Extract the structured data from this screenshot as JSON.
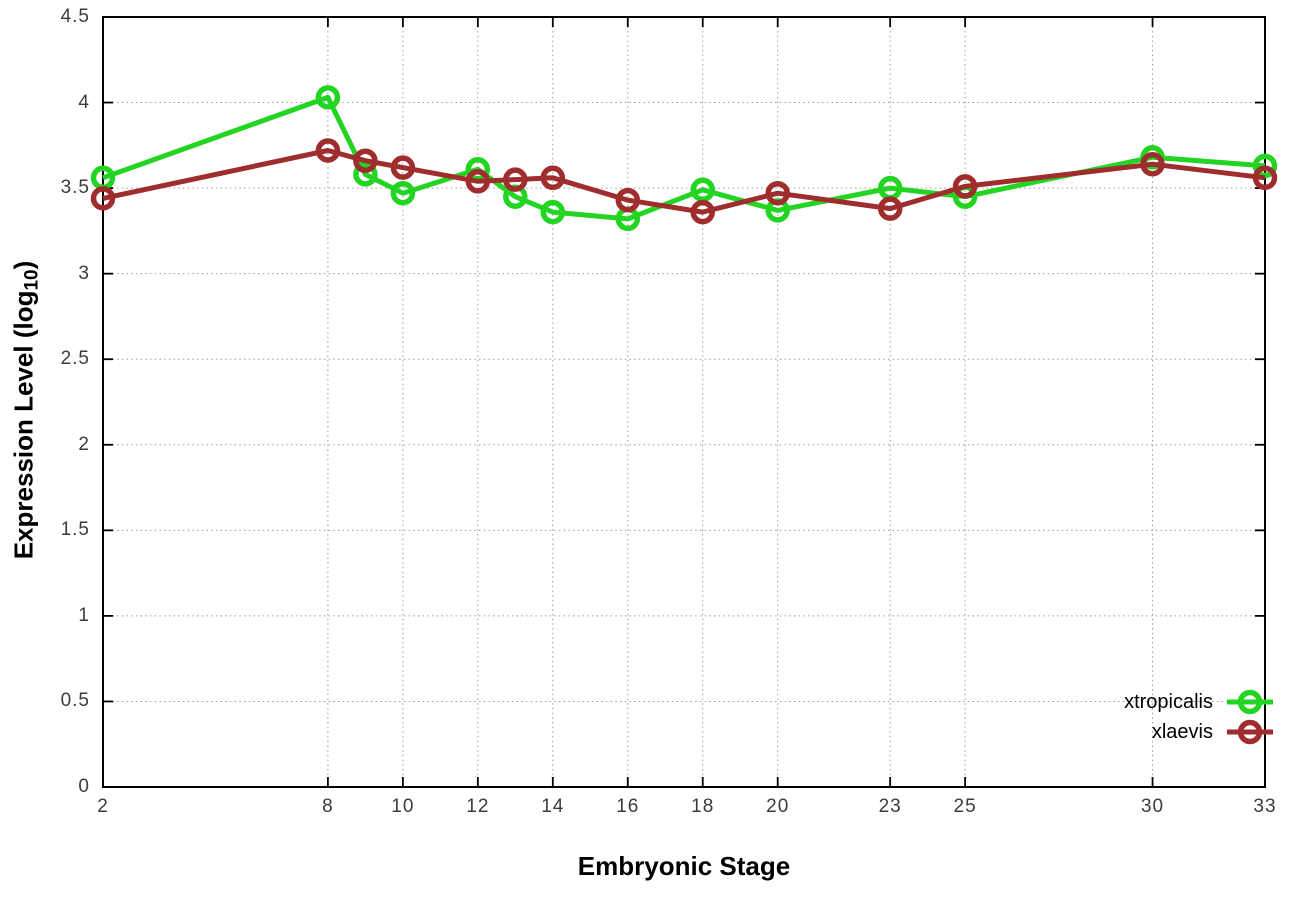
{
  "chart_data": {
    "type": "line",
    "title": "",
    "xlabel": "Embryonic Stage",
    "ylabel": "Expression Level (log10)",
    "ylabel_parts": {
      "pre": "Expression Level (log",
      "sub": "10",
      "post": ")"
    },
    "xlim": [
      2,
      33
    ],
    "ylim": [
      0,
      4.5
    ],
    "x_ticks": [
      2,
      8,
      10,
      12,
      14,
      16,
      18,
      20,
      23,
      25,
      30,
      33
    ],
    "x_tick_labels": [
      "2",
      "8",
      "10",
      "12",
      "14",
      "16",
      "18",
      "20",
      "23",
      "25",
      "30",
      "33"
    ],
    "y_ticks": [
      0,
      0.5,
      1,
      1.5,
      2,
      2.5,
      3,
      3.5,
      4,
      4.5
    ],
    "y_tick_labels": [
      "0",
      "0.5",
      "1",
      "1.5",
      "2",
      "2.5",
      "3",
      "3.5",
      "4",
      "4.5"
    ],
    "grid": true,
    "legend_position": "bottom-right",
    "x": [
      2,
      8,
      9,
      10,
      12,
      13,
      14,
      16,
      18,
      20,
      23,
      25,
      30,
      33
    ],
    "series": [
      {
        "name": "xtropicalis",
        "color": "#23d423",
        "values": [
          3.56,
          4.03,
          3.58,
          3.47,
          3.61,
          3.45,
          3.36,
          3.32,
          3.49,
          3.37,
          3.5,
          3.45,
          3.68,
          3.63
        ]
      },
      {
        "name": "xlaevis",
        "color": "#a02d2d",
        "values": [
          3.44,
          3.72,
          3.66,
          3.62,
          3.54,
          3.55,
          3.56,
          3.43,
          3.36,
          3.47,
          3.38,
          3.51,
          3.64,
          3.56
        ]
      }
    ]
  },
  "colors": {
    "background": "#ffffff",
    "axis": "#000000",
    "grid": "#9c9c9c",
    "tick_text": "#3c3c3c"
  }
}
